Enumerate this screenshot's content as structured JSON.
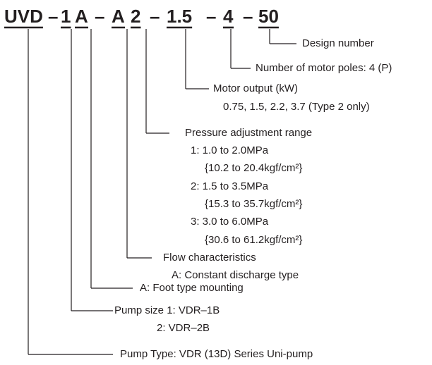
{
  "code": [
    "UVD",
    "–",
    "1",
    "A",
    "–",
    "A",
    "2",
    "–",
    "1.5",
    "–",
    "4",
    "–",
    "50"
  ],
  "items": [
    {
      "label": "Design number"
    },
    {
      "label": "Number of motor poles: 4 (P)"
    },
    {
      "label": "Motor output (kW)",
      "details": [
        "0.75, 1.5, 2.2, 3.7 (Type 2 only)"
      ]
    },
    {
      "label": "Pressure adjustment range",
      "details": [
        "1: 1.0 to 2.0MPa",
        "{10.2 to 20.4kgf/cm²}",
        "2: 1.5 to 3.5MPa",
        "{15.3 to 35.7kgf/cm²}",
        "3: 3.0 to 6.0MPa",
        "{30.6 to 61.2kgf/cm²}"
      ]
    },
    {
      "label": "Flow characteristics",
      "details": [
        "A: Constant discharge type"
      ]
    },
    {
      "label": "A: Foot type mounting"
    },
    {
      "label": "Pump size  1: VDR–1B",
      "details": [
        "2: VDR–2B"
      ]
    },
    {
      "label": "Pump Type: VDR (13D) Series Uni-pump"
    }
  ]
}
